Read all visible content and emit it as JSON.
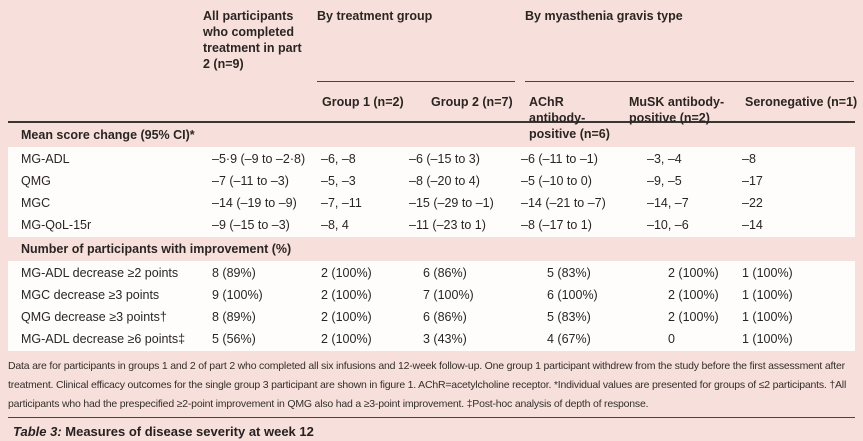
{
  "table": {
    "header": {
      "all_participants": "All participants who completed treatment in part 2 (n=9)",
      "treatment_span": "By treatment group",
      "mg_type_span": "By myasthenia gravis type",
      "subheaders": [
        "Group 1 (n=2)",
        "Group 2 (n=7)",
        "AChR antibody-positive (n=6)",
        "MuSK antibody-positive (n=2)",
        "Seronegative (n=1)"
      ]
    },
    "sections": [
      {
        "title": "Mean score change (95% CI)*",
        "rows": [
          {
            "label": "MG-ADL",
            "values": [
              "–5·9 (–9 to –2·8)",
              "–6, –8",
              "–6 (–15 to 3)",
              "–6 (–11 to –1)",
              "–3, –4",
              "–8"
            ]
          },
          {
            "label": "QMG",
            "values": [
              "–7 (–11 to –3)",
              "–5, –3",
              "–8 (–20 to 4)",
              "–5 (–10 to 0)",
              "–9, –5",
              "–17"
            ]
          },
          {
            "label": "MGC",
            "values": [
              "–14 (–19 to –9)",
              "–7, –11",
              "–15 (–29 to –1)",
              "–14 (–21 to –7)",
              "–14, –7",
              "–22"
            ]
          },
          {
            "label": "MG-QoL-15r",
            "values": [
              "–9 (–15 to –3)",
              "–8, 4",
              "–11 (–23 to 1)",
              "–8 (–17 to 1)",
              "–10, –6",
              "–14"
            ]
          }
        ]
      },
      {
        "title": "Number of participants with improvement (%)",
        "rows": [
          {
            "label": "MG-ADL decrease ≥2 points",
            "values": [
              "8 (89%)",
              "2 (100%)",
              "6 (86%)",
              "5 (83%)",
              "2 (100%)",
              "1 (100%)"
            ]
          },
          {
            "label": "MGC decrease ≥3 points",
            "values": [
              "9 (100%)",
              "2 (100%)",
              "7 (100%)",
              "6 (100%)",
              "2 (100%)",
              "1 (100%)"
            ]
          },
          {
            "label": "QMG decrease ≥3 points†",
            "values": [
              "8 (89%)",
              "2 (100%)",
              "6 (86%)",
              "5 (83%)",
              "2 (100%)",
              "1 (100%)"
            ]
          },
          {
            "label": "MG-ADL decrease ≥6 points‡",
            "values": [
              "5 (56%)",
              "2 (100%)",
              "3 (43%)",
              "4 (67%)",
              "0",
              "1 (100%)"
            ]
          }
        ]
      }
    ],
    "footnote": "Data are for participants in groups 1 and 2 of part 2 who completed all six infusions and 12-week follow-up. One group 1 participant withdrew from the study before the first assessment after treatment. Clinical efficacy outcomes for the single group 3 participant are shown in figure 1. AChR=acetylcholine receptor. *Individual values are presented for groups of ≤2 participants. †All participants who had the prespecified ≥2-point improvement in QMG also had a ≥3-point improvement. ‡Post-hoc analysis of depth of response.",
    "caption_label": "Table 3:",
    "caption_text": " Measures of disease severity at week 12"
  },
  "colors": {
    "page_background": "#f7e0dc",
    "row_background": "#fffdfc",
    "rule_dark": "#3a3533",
    "rule_light": "#4a4543",
    "text": "#2a2522"
  }
}
